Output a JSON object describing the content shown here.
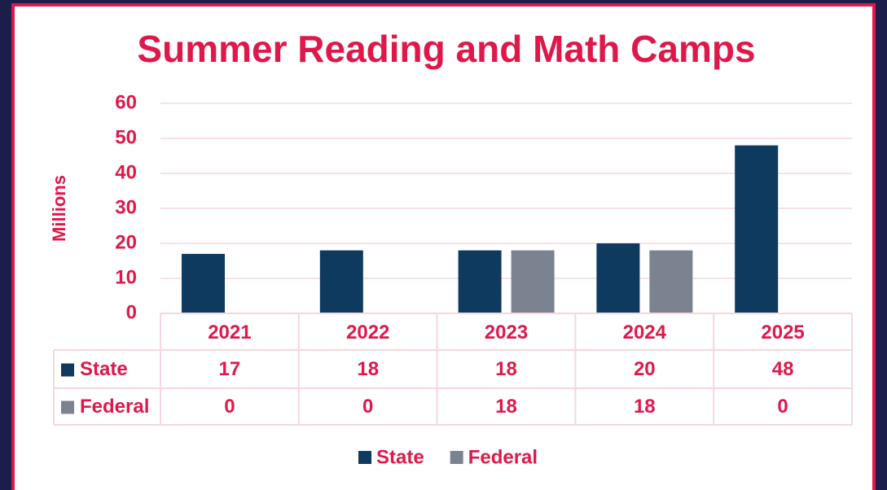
{
  "chart_data": {
    "type": "bar",
    "title": "Summer Reading and Math Camps",
    "y_label": "Millions",
    "categories": [
      "2021",
      "2022",
      "2023",
      "2024",
      "2025"
    ],
    "series": [
      {
        "name": "State",
        "color": "#0f3a5f",
        "values": [
          17,
          18,
          18,
          20,
          48
        ]
      },
      {
        "name": "Federal",
        "color": "#7b8391",
        "values": [
          0,
          0,
          18,
          18,
          0
        ]
      }
    ],
    "ylim": [
      0,
      60
    ],
    "yticks": [
      0,
      10,
      20,
      30,
      40,
      50,
      60
    ],
    "grid": true,
    "data_table": true,
    "legend": "bottom"
  }
}
